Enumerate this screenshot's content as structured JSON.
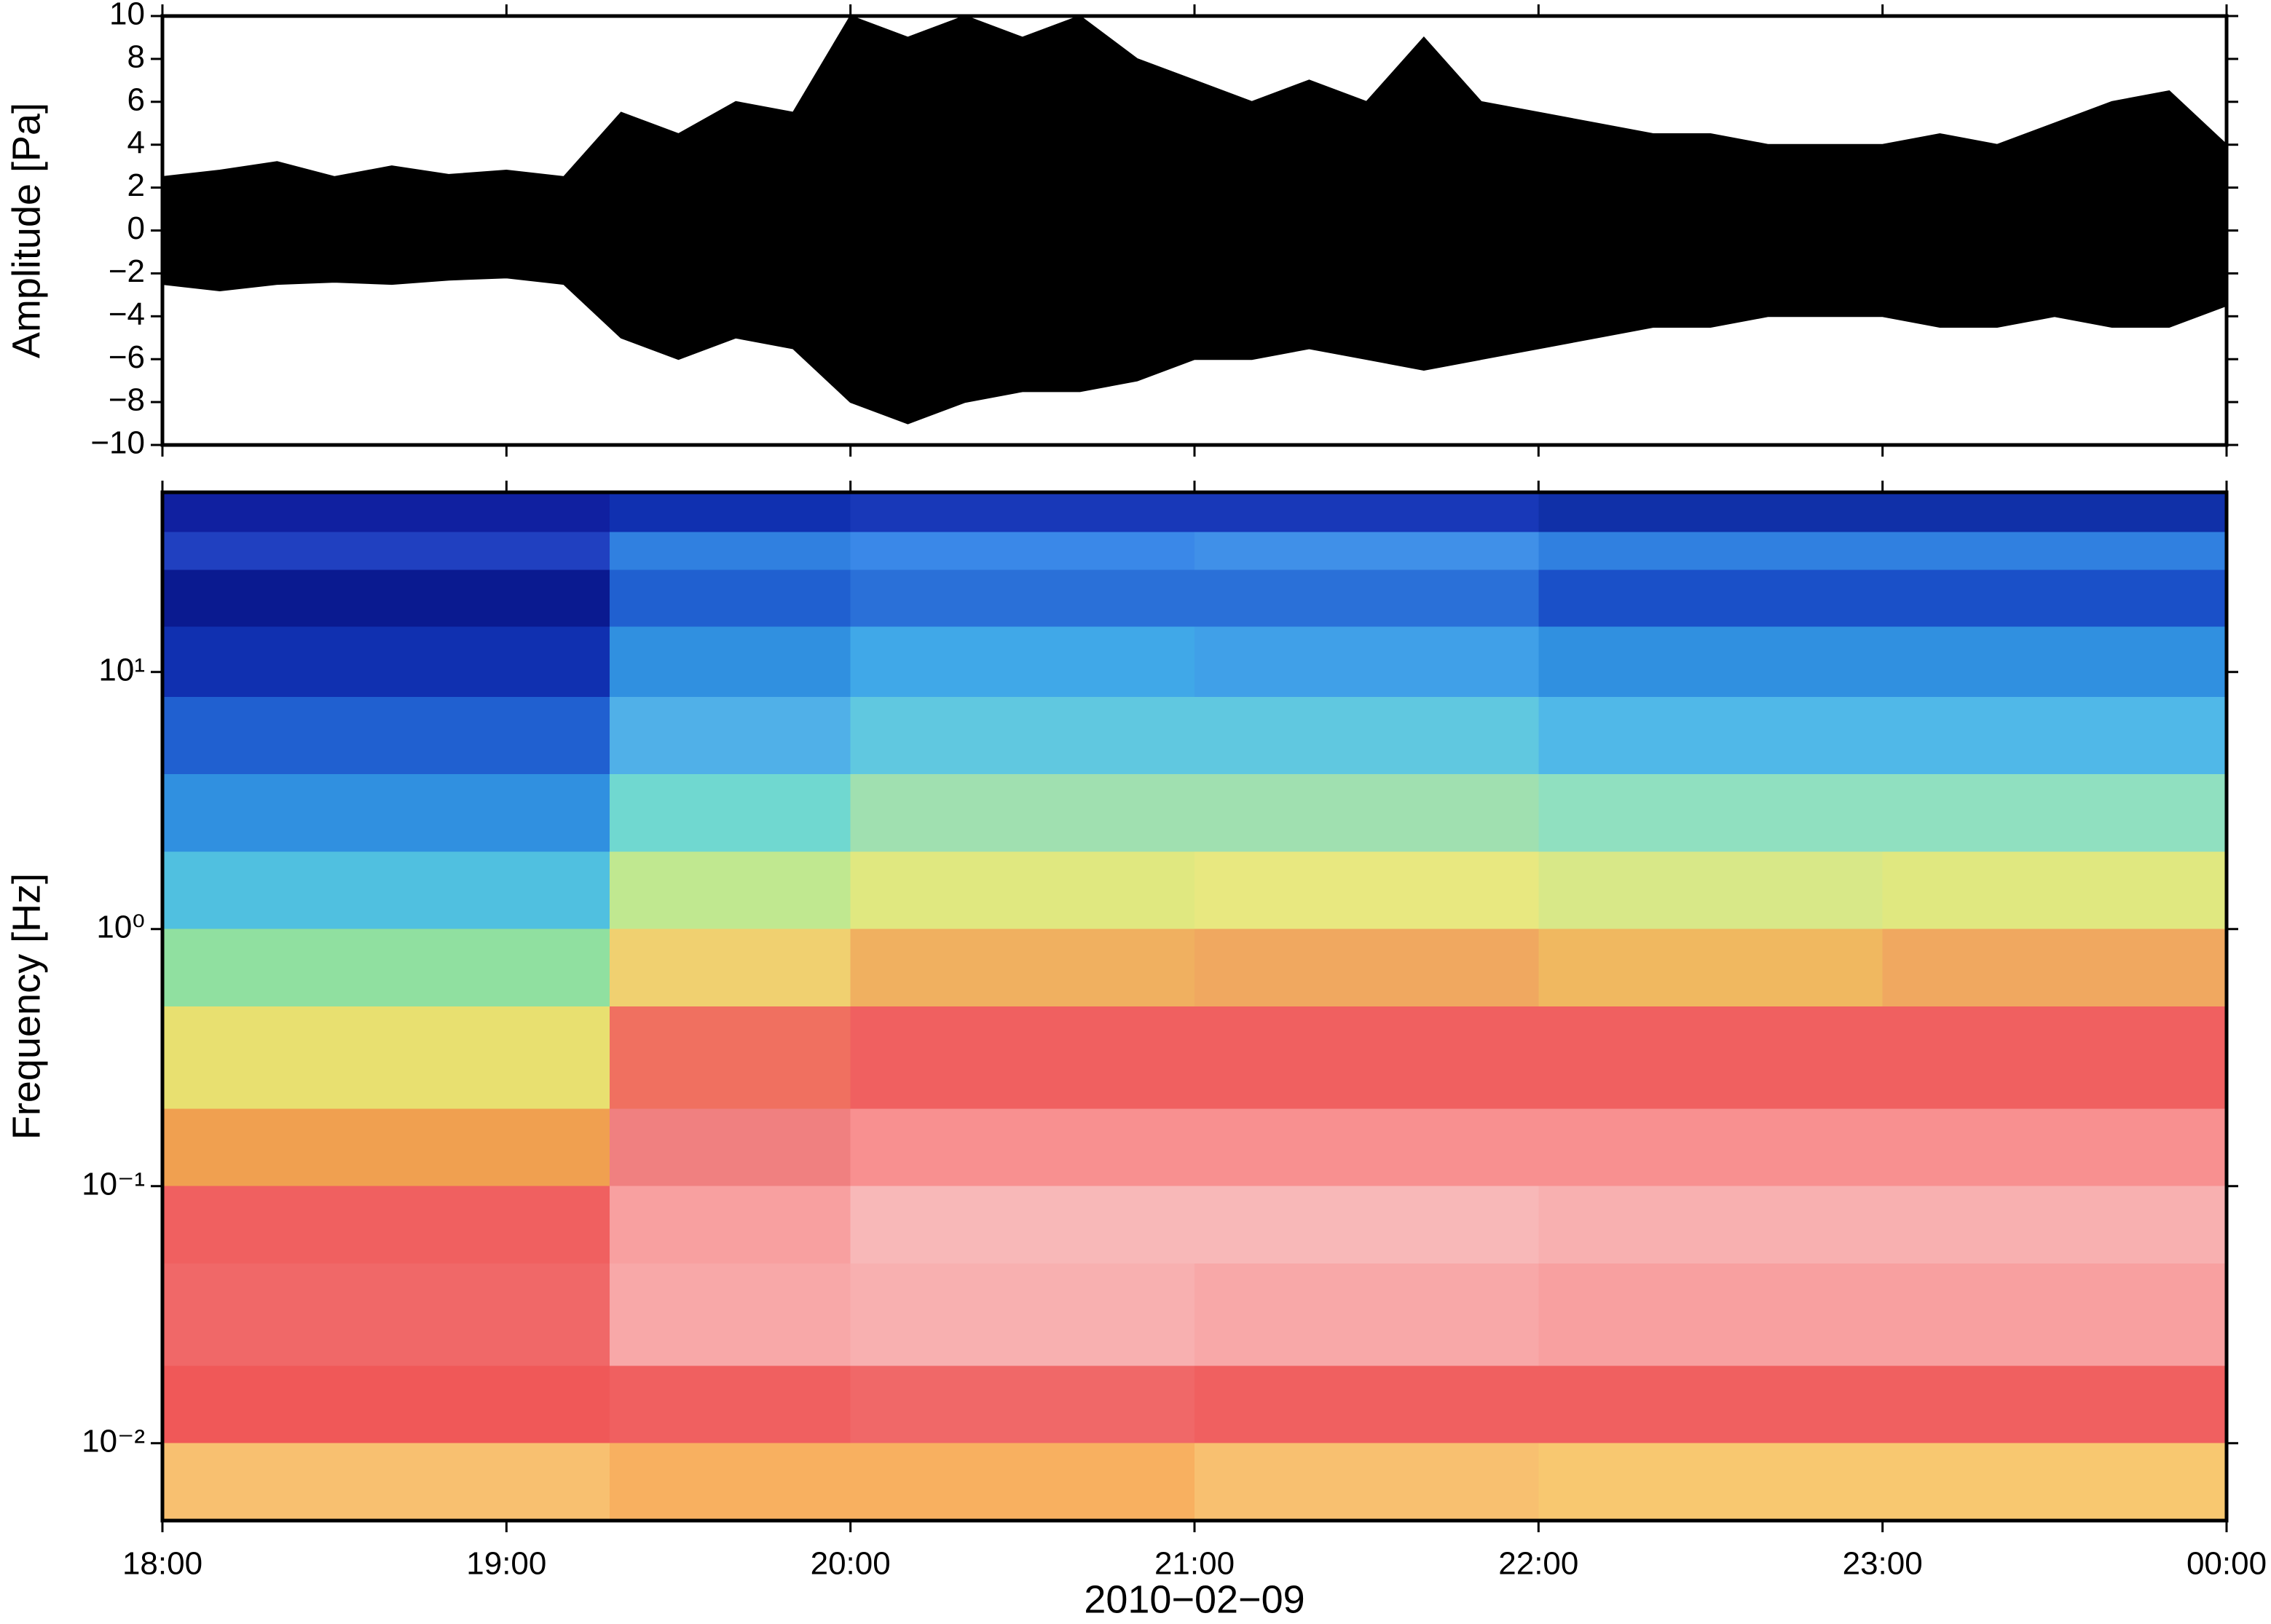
{
  "chart_data": [
    {
      "type": "line",
      "ylabel": "Amplitude [Pa]",
      "xlim": [
        18,
        24
      ],
      "xticks": [
        18,
        19,
        20,
        21,
        22,
        23,
        24
      ],
      "ylim": [
        -10,
        10
      ],
      "yticks": [
        {
          "value": -10,
          "label": "−10"
        },
        {
          "value": -8,
          "label": "−8"
        },
        {
          "value": -6,
          "label": "−6"
        },
        {
          "value": -4,
          "label": "−4"
        },
        {
          "value": -2,
          "label": "−2"
        },
        0,
        2,
        4,
        6,
        8,
        10
      ],
      "x": [
        18,
        18.1667,
        18.3333,
        18.5,
        18.6667,
        18.8333,
        19,
        19.1667,
        19.3333,
        19.5,
        19.6667,
        19.8333,
        20,
        20.1667,
        20.3333,
        20.5,
        20.6667,
        20.8333,
        21,
        21.1667,
        21.3333,
        21.5,
        21.6667,
        21.8333,
        22,
        22.1667,
        22.3333,
        22.5,
        22.6667,
        22.8333,
        23,
        23.1667,
        23.3333,
        23.5,
        23.6667,
        23.8333,
        24
      ],
      "series": [
        {
          "color": "#000000",
          "values": [
            2.5,
            2.8,
            3.2,
            2.5,
            3.0,
            2.6,
            2.8,
            2.5,
            5.5,
            4.5,
            6.0,
            5.5,
            10,
            9,
            10,
            9,
            10,
            8,
            7,
            6,
            7,
            6,
            9,
            6,
            5.5,
            5,
            4.5,
            4.5,
            4,
            4,
            4,
            4.5,
            4,
            5,
            6,
            6.5,
            4
          ]
        },
        {
          "color": "#000000",
          "values": [
            -2.5,
            -2.8,
            -2.5,
            -2.4,
            -2.5,
            -2.3,
            -2.2,
            -2.5,
            -5,
            -6,
            -5,
            -5.5,
            -8,
            -9,
            -8,
            -7.5,
            -7.5,
            -7,
            -6,
            -6,
            -5.5,
            -6,
            -6.5,
            -6,
            -5.5,
            -5,
            -4.5,
            -4.5,
            -4,
            -4,
            -4,
            -4.5,
            -4.5,
            -4,
            -4.5,
            -4.5,
            -3.5
          ]
        }
      ]
    },
    {
      "type": "heatmap",
      "ylabel": "Frequency [Hz]",
      "xlabel": "2010−02−09",
      "xlim": [
        18,
        24
      ],
      "xticks": [
        {
          "value": 18,
          "label": "18:00"
        },
        {
          "value": 19,
          "label": "19:00"
        },
        {
          "value": 20,
          "label": "20:00"
        },
        {
          "value": 21,
          "label": "21:00"
        },
        {
          "value": 22,
          "label": "22:00"
        },
        {
          "value": 23,
          "label": "23:00"
        },
        {
          "value": 24,
          "label": "00:00"
        }
      ],
      "ylim": [
        0.005,
        50
      ],
      "log_y": true,
      "yticks": [
        {
          "value": 0.01,
          "label": "10⁻²"
        },
        {
          "value": 0.1,
          "label": "10⁻¹"
        },
        {
          "value": 1,
          "label": "10⁰"
        },
        {
          "value": 10,
          "label": "10¹"
        }
      ],
      "x_edges": [
        18,
        19.3,
        20,
        21,
        22,
        23,
        24
      ],
      "y_edges": [
        50,
        35,
        25,
        15,
        8,
        4,
        2,
        1,
        0.5,
        0.2,
        0.1,
        0.05,
        0.02,
        0.01,
        0.005
      ],
      "colors": [
        [
          "#1020a0",
          "#2040c0",
          "#0a1a90",
          "#1030b0",
          "#2060d0",
          "#3090e0",
          "#50c0e0",
          "#90e0a0",
          "#e8e070",
          "#f0a050",
          "#f06060",
          "#f06868",
          "#f05858",
          "#f8c070"
        ],
        [
          "#1030b0",
          "#3080e0",
          "#2060d0",
          "#3090e0",
          "#50b0e8",
          "#70d8d0",
          "#c0e890",
          "#f0d070",
          "#f07060",
          "#f08080",
          "#f8a0a0",
          "#f8a8a8",
          "#f06060",
          "#f8b060"
        ],
        [
          "#1838b8",
          "#3a88e8",
          "#2a70d8",
          "#40a8e8",
          "#60c8e0",
          "#a0e0b0",
          "#e0e880",
          "#f0b060",
          "#f06060",
          "#f89090",
          "#f8b8b8",
          "#f8b0b0",
          "#f06868",
          "#f8b060"
        ],
        [
          "#1838b8",
          "#4090e8",
          "#2a70d8",
          "#40a0e8",
          "#60c8e0",
          "#a0e0b0",
          "#e8e880",
          "#f0a860",
          "#f06060",
          "#f89090",
          "#f8b8b8",
          "#f8a8a8",
          "#f06060",
          "#f8c070"
        ],
        [
          "#1030a8",
          "#3080e0",
          "#1a50c8",
          "#3090e0",
          "#50b8e8",
          "#90e0c0",
          "#d8e888",
          "#f0b860",
          "#f06060",
          "#f89090",
          "#f8b0b0",
          "#f8a0a0",
          "#f06060",
          "#f8c870"
        ],
        [
          "#1030a8",
          "#3080e0",
          "#1a50c8",
          "#3090e0",
          "#50b8e8",
          "#90e0c0",
          "#e0e880",
          "#f0a860",
          "#f06060",
          "#f89090",
          "#f8b0b0",
          "#f8a0a0",
          "#f06060",
          "#f8c870"
        ]
      ]
    }
  ]
}
